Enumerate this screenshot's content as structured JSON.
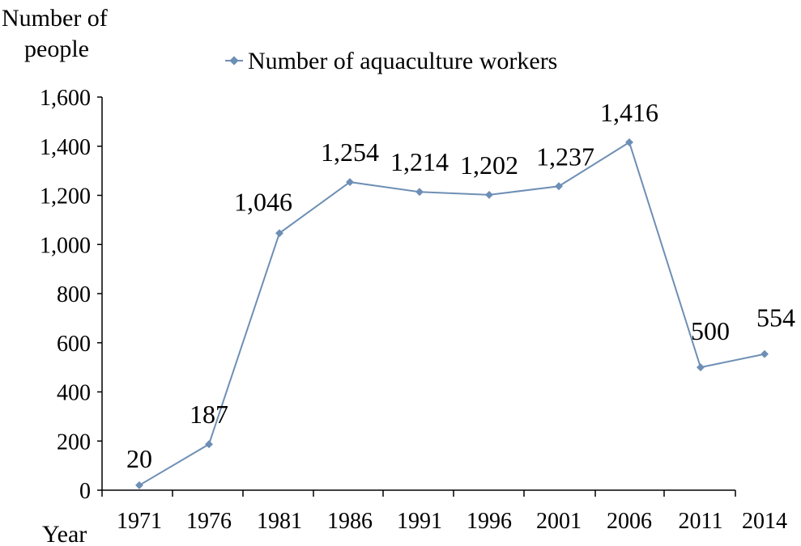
{
  "chart_data": {
    "type": "line",
    "title": "",
    "ylabel_line1": "Number of",
    "ylabel_line2": "people",
    "xlabel": "Year",
    "legend": {
      "label": "Number of aquaculture workers",
      "position": "top"
    },
    "ylim": [
      0,
      1600
    ],
    "yticks": [
      "0",
      "200",
      "400",
      "600",
      "800",
      "1,000",
      "1,200",
      "1,400",
      "1,600"
    ],
    "categories": [
      "1971",
      "1976",
      "1981",
      "1986",
      "1991",
      "1996",
      "2001",
      "2006",
      "2011",
      "2014"
    ],
    "series": [
      {
        "name": "Number of aquaculture workers",
        "color": "#6e8fb5",
        "x": [
          "1971",
          "1976",
          "1981",
          "1986",
          "1991",
          "1996",
          "2001",
          "2006",
          "2011",
          "2014"
        ],
        "values": [
          20,
          187,
          1046,
          1254,
          1214,
          1202,
          1237,
          1416,
          500,
          554
        ],
        "labels": [
          "20",
          "187",
          "1,046",
          "1,254",
          "1,214",
          "1,202",
          "1,237",
          "1,416",
          "500",
          "554"
        ]
      }
    ],
    "grid": false
  }
}
